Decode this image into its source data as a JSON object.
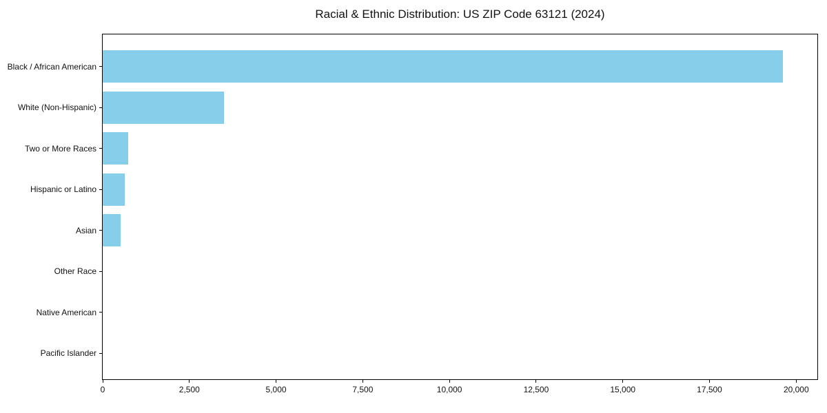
{
  "chart_data": {
    "type": "bar",
    "orientation": "horizontal",
    "title": "Racial & Ethnic Distribution: US ZIP Code 63121 (2024)",
    "categories": [
      "Black / African American",
      "White (Non-Hispanic)",
      "Two or More Races",
      "Hispanic or Latino",
      "Asian",
      "Other Race",
      "Native American",
      "Pacific Islander"
    ],
    "values": [
      19620,
      3490,
      730,
      630,
      510,
      0,
      0,
      0
    ],
    "xlabel": "",
    "ylabel": "",
    "xlim": [
      0,
      20610
    ],
    "xticks": [
      0,
      2500,
      5000,
      7500,
      10000,
      12500,
      15000,
      17500,
      20000
    ],
    "xtick_labels": [
      "0",
      "2,500",
      "5,000",
      "7,500",
      "10,000",
      "12,500",
      "15,000",
      "17,500",
      "20,000"
    ],
    "bar_color": "#87CEEB",
    "axis_color": "#000000",
    "text_color": "#111111",
    "background_color": "#ffffff",
    "grid": false,
    "legend": null
  }
}
